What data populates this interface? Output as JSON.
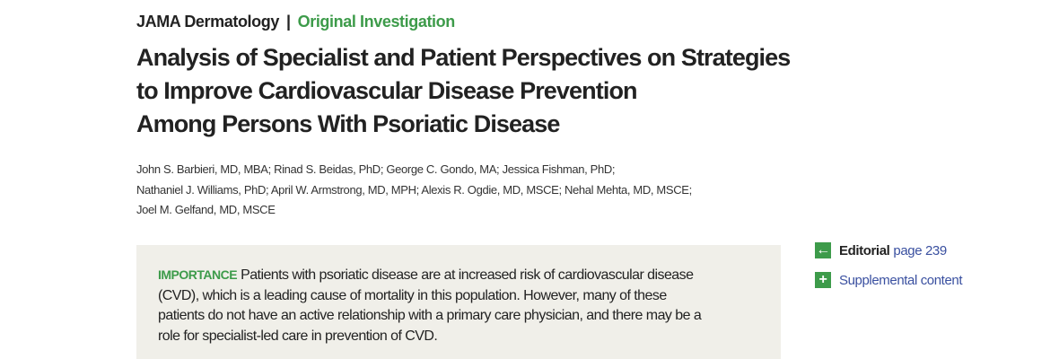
{
  "header": {
    "journal": "JAMA Dermatology",
    "separator": "|",
    "article_type": "Original Investigation"
  },
  "title_lines": [
    "Analysis of Specialist and Patient Perspectives on Strategies",
    "to Improve Cardiovascular Disease Prevention",
    "Among Persons With Psoriatic Disease"
  ],
  "author_lines": [
    "John S. Barbieri, MD, MBA; Rinad S. Beidas, PhD; George C. Gondo, MA; Jessica Fishman, PhD;",
    "Nathaniel J. Williams, PhD; April W. Armstrong, MD, MPH; Alexis R. Ogdie, MD, MSCE; Nehal Mehta, MD, MSCE;",
    "Joel M. Gelfand, MD, MSCE"
  ],
  "abstract": {
    "label": "IMPORTANCE",
    "lines": [
      "Patients with psoriatic disease are at increased risk of cardiovascular disease",
      "(CVD), which is a leading cause of mortality in this population. However, many of these",
      "patients do not have an active relationship with a primary care physician, and there may be a",
      "role for specialist-led care in prevention of CVD."
    ]
  },
  "sidebar": {
    "editorial": {
      "icon": "arrow-left-icon",
      "label": "Editorial",
      "link": "page 239"
    },
    "supplement": {
      "icon": "plus-icon",
      "link": "Supplemental content"
    }
  },
  "colors": {
    "accent_green": "#3d9b4a",
    "link_blue": "#3a50a0",
    "abstract_bg": "#f0efe9"
  }
}
